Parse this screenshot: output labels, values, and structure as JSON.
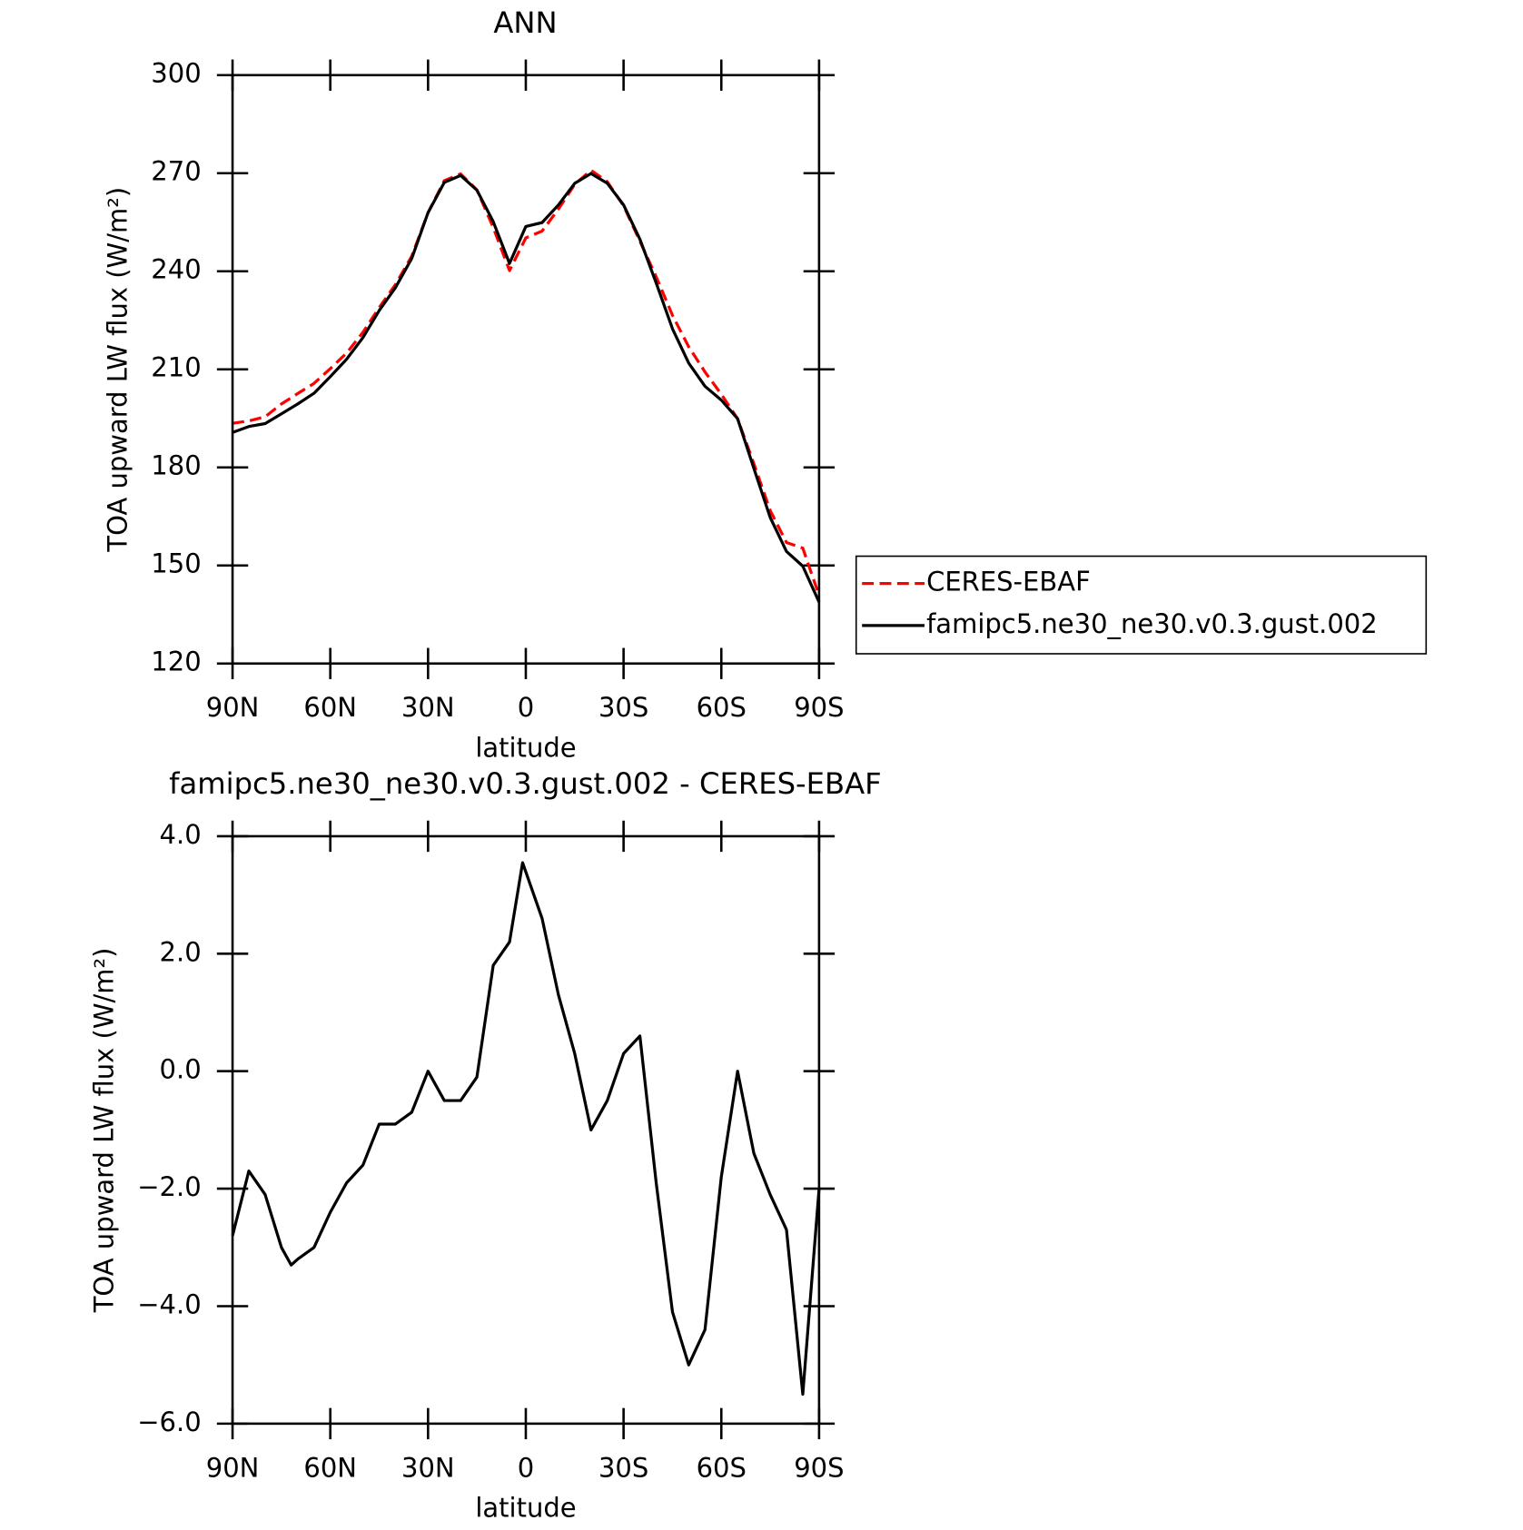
{
  "chart_data": [
    {
      "type": "line",
      "title": "ANN",
      "xlabel": "latitude",
      "ylabel": "TOA upward LW flux (W/m²)",
      "x": [
        90,
        85,
        80,
        75,
        70,
        65,
        60,
        55,
        50,
        45,
        40,
        35,
        30,
        25,
        20,
        15,
        10,
        5,
        0,
        -5,
        -10,
        -15,
        -20,
        -25,
        -30,
        -35,
        -40,
        -45,
        -50,
        -55,
        -60,
        -65,
        -70,
        -75,
        -80,
        -85,
        -90
      ],
      "series": [
        {
          "name": "CERES-EBAF",
          "color": "#ff0000",
          "dash": true,
          "values": [
            193.5,
            194.2,
            195.5,
            199.4,
            202.6,
            205.7,
            210.2,
            215.0,
            221.3,
            228.9,
            235.9,
            244.6,
            257.9,
            267.7,
            269.8,
            264.9,
            253.4,
            240.2,
            250.2,
            252.3,
            259.0,
            266.6,
            270.9,
            267.4,
            260.0,
            249.2,
            238.3,
            226.5,
            216.9,
            209.2,
            202.4,
            194.9,
            181.1,
            166.8,
            157.0,
            155.3,
            140.8
          ]
        },
        {
          "name": "famipc5.ne30_ne30.v0.3.gust.002",
          "color": "#000000",
          "dash": false,
          "values": [
            190.7,
            192.5,
            193.4,
            196.4,
            199.4,
            202.7,
            207.8,
            213.1,
            219.7,
            228.0,
            235.0,
            243.9,
            257.9,
            267.2,
            269.3,
            264.8,
            255.2,
            242.4,
            253.7,
            254.9,
            260.3,
            266.9,
            269.9,
            266.9,
            260.3,
            249.8,
            236.4,
            222.4,
            211.9,
            204.8,
            200.6,
            194.9,
            179.7,
            164.7,
            154.3,
            149.8,
            138.8
          ]
        }
      ],
      "xlim": [
        90,
        -90
      ],
      "xticks": [
        {
          "value": 90,
          "label": "90N"
        },
        {
          "value": 60,
          "label": "60N"
        },
        {
          "value": 30,
          "label": "30N"
        },
        0,
        {
          "value": -30,
          "label": "30S"
        },
        {
          "value": -60,
          "label": "60S"
        },
        {
          "value": -90,
          "label": "90S"
        }
      ],
      "ylim": [
        120,
        300
      ],
      "yticks": [
        120,
        150,
        180,
        210,
        240,
        270,
        300
      ],
      "legend": "right"
    },
    {
      "type": "line",
      "title": "famipc5.ne30_ne30.v0.3.gust.002 - CERES-EBAF",
      "xlabel": "latitude",
      "ylabel": "TOA upward LW flux (W/m²)",
      "x": [
        90,
        85,
        80,
        75,
        72,
        70,
        65,
        60,
        55,
        50,
        45,
        40,
        35,
        30,
        25,
        20,
        15,
        10,
        5,
        1,
        -5,
        -10,
        -15,
        -20,
        -25,
        -30,
        -35,
        -40,
        -45,
        -50,
        -55,
        -60,
        -65,
        -70,
        -75,
        -80,
        -85,
        -90
      ],
      "series": [
        {
          "color": "#000000",
          "dash": false,
          "values": [
            -2.8,
            -1.7,
            -2.1,
            -3.0,
            -3.3,
            -3.2,
            -3.0,
            -2.4,
            -1.9,
            -1.6,
            -0.9,
            -0.9,
            -0.7,
            0.0,
            -0.5,
            -0.5,
            -0.1,
            1.8,
            2.2,
            3.55,
            2.6,
            1.3,
            0.3,
            -1.0,
            -0.5,
            0.3,
            0.6,
            -1.9,
            -4.1,
            -5.0,
            -4.4,
            -1.8,
            0.0,
            -1.4,
            -2.1,
            -2.7,
            -5.5,
            -2.0
          ]
        }
      ],
      "xlim": [
        90,
        -90
      ],
      "xticks": [
        {
          "value": 90,
          "label": "90N"
        },
        {
          "value": 60,
          "label": "60N"
        },
        {
          "value": 30,
          "label": "30N"
        },
        0,
        {
          "value": -30,
          "label": "30S"
        },
        {
          "value": -60,
          "label": "60S"
        },
        {
          "value": -90,
          "label": "90S"
        }
      ],
      "ylim": [
        -6,
        4
      ],
      "yticks": [
        {
          "value": -6,
          "label": "−6.0"
        },
        {
          "value": -4,
          "label": "−4.0"
        },
        {
          "value": -2,
          "label": "−2.0"
        },
        {
          "value": 0,
          "label": "0.0"
        },
        {
          "value": 2,
          "label": "2.0"
        },
        {
          "value": 4,
          "label": "4.0"
        }
      ]
    }
  ]
}
